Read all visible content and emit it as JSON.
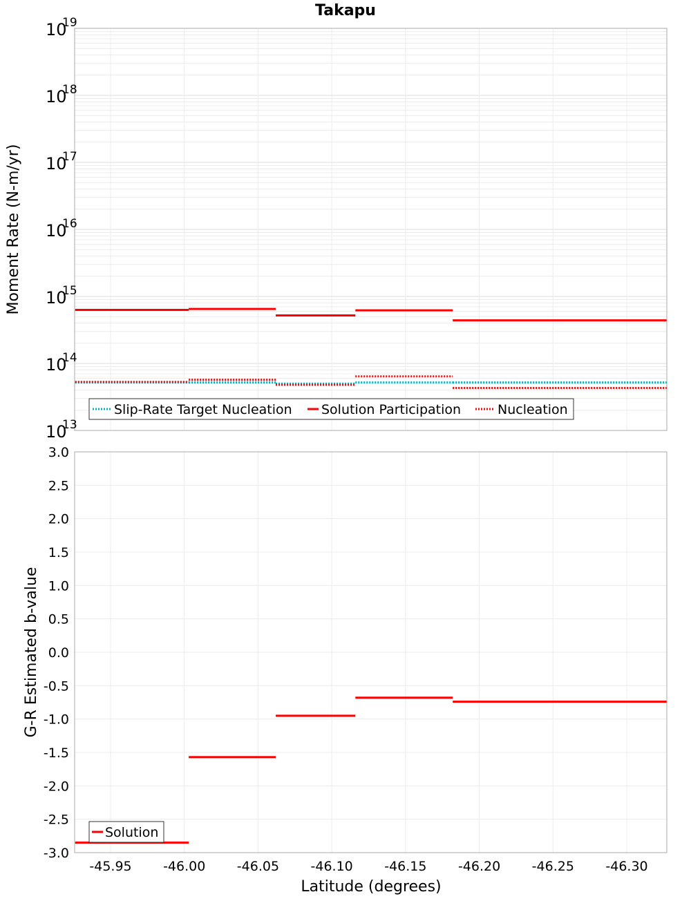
{
  "title": "Takapu",
  "xlabel": "Latitude (degrees)",
  "colors": {
    "solution": "#ff0000",
    "nucleation": "#ff0000",
    "target": "#00b0c0",
    "grid": "#e6e6e6",
    "frame": "#aaaaaa"
  },
  "chart_data": [
    {
      "type": "line",
      "style": "step",
      "title": "Takapu",
      "xlabel": "Latitude (degrees)",
      "ylabel": "Moment Rate (N-m/yr)",
      "yscale": "log",
      "ylim": [
        10000000000000.0,
        1e+19
      ],
      "xlim": [
        -45.926,
        -46.327
      ],
      "y_ticks": [
        "10^13",
        "10^14",
        "10^15",
        "10^16",
        "10^17",
        "10^18",
        "10^19"
      ],
      "grid": true,
      "legend_position": "lower-left",
      "bin_edges": [
        -45.926,
        -46.003,
        -46.062,
        -46.116,
        -46.182,
        -46.327
      ],
      "series": [
        {
          "name": "Slip-Rate Target Nucleation",
          "style": "dotted",
          "color": "#00b0c0",
          "values": [
            52000000000000.0,
            52000000000000.0,
            50000000000000.0,
            52000000000000.0,
            52000000000000.0
          ]
        },
        {
          "name": "Solution Participation",
          "style": "solid",
          "color": "#ff0000",
          "values": [
            630000000000000.0,
            650000000000000.0,
            520000000000000.0,
            620000000000000.0,
            440000000000000.0
          ]
        },
        {
          "name": "Nucleation",
          "style": "dotted",
          "color": "#ff0000",
          "values": [
            53000000000000.0,
            57000000000000.0,
            48000000000000.0,
            64000000000000.0,
            43000000000000.0
          ]
        }
      ]
    },
    {
      "type": "line",
      "style": "step",
      "xlabel": "Latitude (degrees)",
      "ylabel": "G-R Estimated b-value",
      "ylim": [
        -3.0,
        3.0
      ],
      "xlim": [
        -45.926,
        -46.327
      ],
      "y_ticks": [
        "3.0",
        "2.5",
        "2.0",
        "1.5",
        "1.0",
        "0.5",
        "0.0",
        "-0.5",
        "-1.0",
        "-1.5",
        "-2.0",
        "-2.5",
        "-3.0"
      ],
      "x_ticks": [
        "-45.95",
        "-46.00",
        "-46.05",
        "-46.10",
        "-46.15",
        "-46.20",
        "-46.25",
        "-46.30"
      ],
      "grid": true,
      "legend_position": "lower-left",
      "bin_edges": [
        -45.926,
        -46.003,
        -46.062,
        -46.116,
        -46.182,
        -46.327
      ],
      "series": [
        {
          "name": "Solution",
          "style": "solid",
          "color": "#ff0000",
          "values": [
            -2.85,
            -1.57,
            -0.95,
            -0.68,
            -0.74
          ]
        }
      ]
    }
  ],
  "top": {
    "ylabel": "Moment Rate (N-m/yr)",
    "ticks": [
      {
        "base": "10",
        "exp": "19"
      },
      {
        "base": "10",
        "exp": "18"
      },
      {
        "base": "10",
        "exp": "17"
      },
      {
        "base": "10",
        "exp": "16"
      },
      {
        "base": "10",
        "exp": "15"
      },
      {
        "base": "10",
        "exp": "14"
      },
      {
        "base": "10",
        "exp": "13"
      }
    ],
    "legend": [
      "Slip-Rate Target Nucleation",
      "Solution Participation",
      "Nucleation"
    ]
  },
  "bottom": {
    "ylabel": "G-R Estimated b-value",
    "ticks": [
      "3.0",
      "2.5",
      "2.0",
      "1.5",
      "1.0",
      "0.5",
      "0.0",
      "-0.5",
      "-1.0",
      "-1.5",
      "-2.0",
      "-2.5",
      "-3.0"
    ],
    "legend": [
      "Solution"
    ],
    "xticks": [
      "-45.95",
      "-46.00",
      "-46.05",
      "-46.10",
      "-46.15",
      "-46.20",
      "-46.25",
      "-46.30"
    ]
  }
}
